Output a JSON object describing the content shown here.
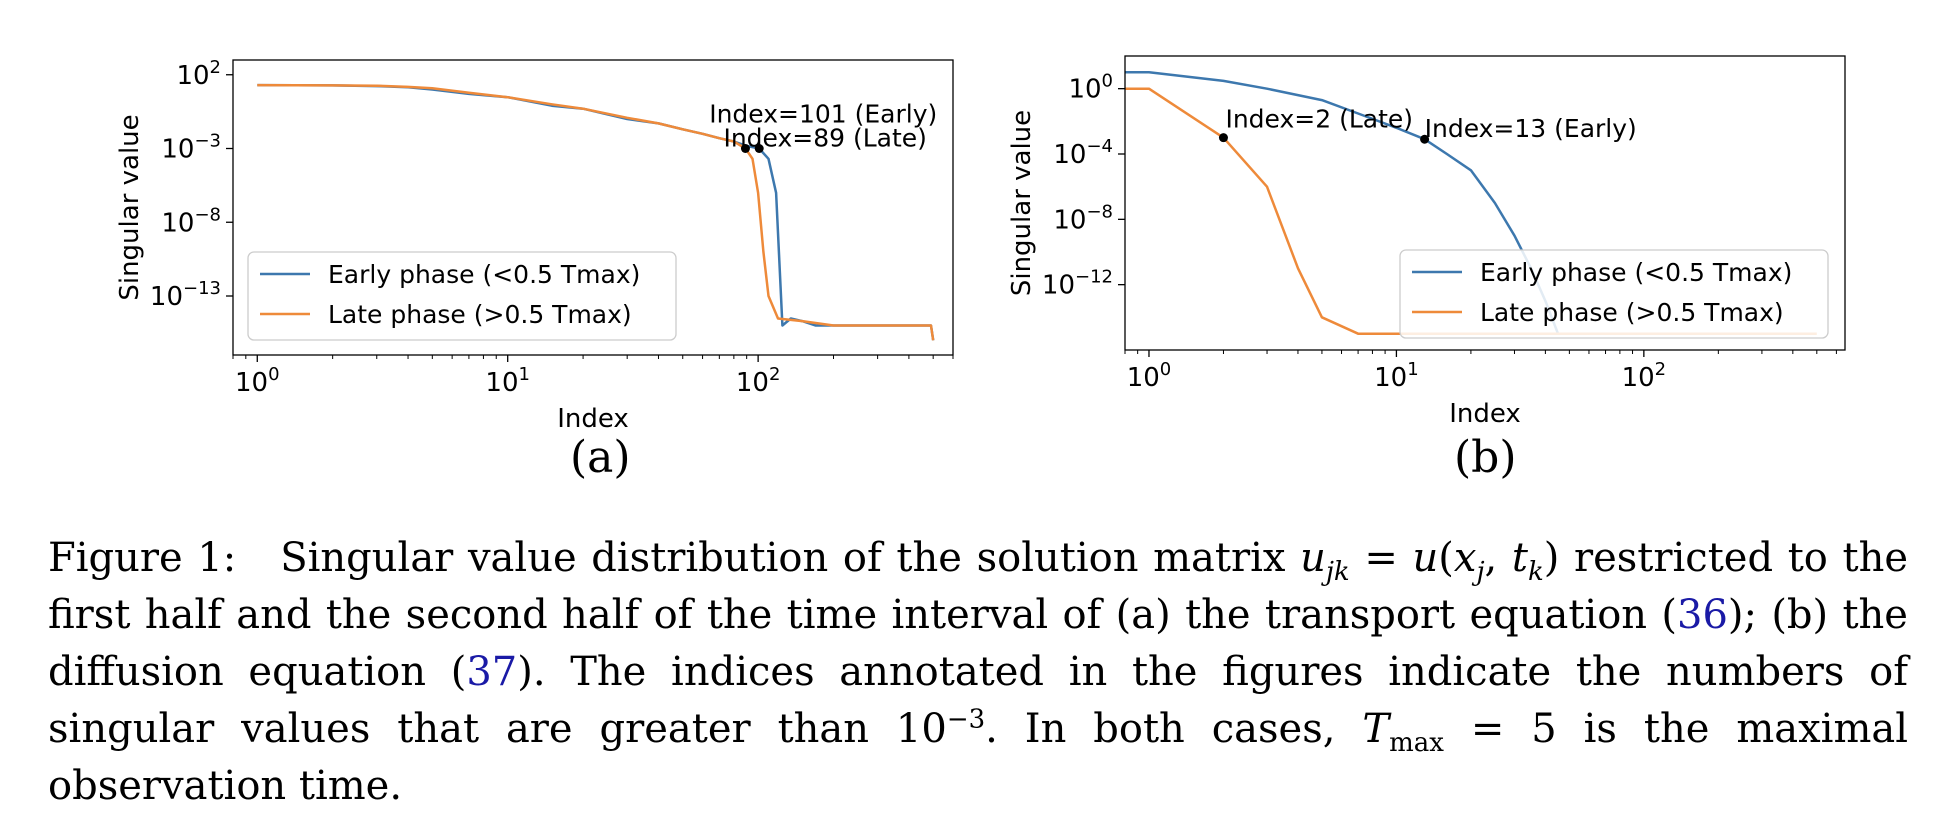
{
  "chart_data": [
    {
      "id": "a",
      "type": "line",
      "xscale": "log",
      "yscale": "log",
      "xlabel": "Index",
      "ylabel": "Singular value",
      "xlim": [
        0.8,
        600
      ],
      "ylim": [
        1e-17,
        1000.0
      ],
      "xticks": [
        {
          "value": 1,
          "base": "10",
          "exp": "0"
        },
        {
          "value": 10,
          "base": "10",
          "exp": "1"
        },
        {
          "value": 100,
          "base": "10",
          "exp": "2"
        }
      ],
      "yticks": [
        {
          "value": 100,
          "base": "10",
          "exp": "2"
        },
        {
          "value": 0.001,
          "base": "10",
          "exp": "−3"
        },
        {
          "value": 1e-08,
          "base": "10",
          "exp": "−8"
        },
        {
          "value": 1e-13,
          "base": "10",
          "exp": "−13"
        }
      ],
      "legend_position": "lower-left",
      "series": [
        {
          "name": "Early phase (<0.5 Tmax)",
          "color": "#3d78ae",
          "x": [
            1,
            2,
            3,
            4,
            5,
            7,
            10,
            15,
            20,
            30,
            40,
            50,
            60,
            70,
            80,
            90,
            101,
            110,
            118,
            125,
            135,
            150,
            170,
            200,
            300,
            400,
            490,
            500
          ],
          "y": [
            20,
            19,
            17,
            14,
            10,
            5,
            3,
            0.8,
            0.5,
            0.1,
            0.05,
            0.02,
            0.01,
            0.005,
            0.003,
            0.0015,
            0.001,
            0.0002,
            1e-06,
            1e-15,
            3e-15,
            2e-15,
            1e-15,
            1e-15,
            1e-15,
            1e-15,
            1e-15,
            1e-16
          ]
        },
        {
          "name": "Late phase (>0.5 Tmax)",
          "color": "#ee8a3a",
          "x": [
            1,
            2,
            3,
            4,
            5,
            7,
            10,
            15,
            20,
            30,
            40,
            50,
            60,
            70,
            80,
            89,
            95,
            100,
            105,
            110,
            120,
            150,
            200,
            300,
            400,
            490,
            500
          ],
          "y": [
            20,
            19,
            18,
            15,
            12,
            6,
            3,
            1,
            0.5,
            0.12,
            0.05,
            0.02,
            0.01,
            0.005,
            0.003,
            0.001,
            0.0002,
            1e-06,
            1e-10,
            1e-13,
            3e-15,
            2e-15,
            1e-15,
            1e-15,
            1e-15,
            1e-15,
            1e-16
          ]
        }
      ],
      "annotations": [
        {
          "text": "Index=101 (Early)",
          "x": 101,
          "y": 0.001
        },
        {
          "text": "Index=89 (Late)",
          "x": 89,
          "y": 0.001
        }
      ],
      "subfigure_label": "(a)"
    },
    {
      "id": "b",
      "type": "line",
      "xscale": "log",
      "yscale": "log",
      "xlabel": "Index",
      "ylabel": "Singular value",
      "xlim": [
        0.8,
        650
      ],
      "ylim": [
        1e-16,
        100.0
      ],
      "xticks": [
        {
          "value": 1,
          "base": "10",
          "exp": "0"
        },
        {
          "value": 10,
          "base": "10",
          "exp": "1"
        },
        {
          "value": 100,
          "base": "10",
          "exp": "2"
        }
      ],
      "yticks": [
        {
          "value": 1,
          "base": "10",
          "exp": "0"
        },
        {
          "value": 0.0001,
          "base": "10",
          "exp": "−4"
        },
        {
          "value": 1e-08,
          "base": "10",
          "exp": "−8"
        },
        {
          "value": 1e-12,
          "base": "10",
          "exp": "−12"
        }
      ],
      "legend_position": "lower-right",
      "series": [
        {
          "name": "Early phase (<0.5 Tmax)",
          "color": "#3d78ae",
          "x": [
            0.8,
            1,
            2,
            3,
            5,
            7,
            10,
            13,
            16,
            20,
            25,
            30,
            35,
            40,
            45
          ],
          "y": [
            10,
            10,
            3,
            1,
            0.2,
            0.03,
            0.004,
            0.0008,
            0.0001,
            1e-05,
            1e-07,
            1e-09,
            1e-11,
            1e-13,
            1e-15
          ]
        },
        {
          "name": "Late phase (>0.5 Tmax)",
          "color": "#ee8a3a",
          "x": [
            0.8,
            1,
            2,
            3,
            4,
            5,
            7,
            10,
            20,
            50,
            100,
            500
          ],
          "y": [
            1,
            1,
            0.001,
            1e-06,
            1e-11,
            1e-14,
            1e-15,
            1e-15,
            1e-15,
            1e-15,
            1e-15,
            1e-15
          ]
        }
      ],
      "annotations": [
        {
          "text": "Index=2 (Late)",
          "x": 2,
          "y": 0.001
        },
        {
          "text": "Index=13 (Early)",
          "x": 13,
          "y": 0.0008
        }
      ],
      "subfigure_label": "(b)"
    }
  ],
  "caption": {
    "figure_label": "Figure 1:",
    "line1_a": "Singular value distribution of the solution matrix",
    "line1_b": "restricted to the",
    "line2_a": "first half and the second half of the time interval of (a) the transport equation (",
    "ref36": "36",
    "line2_b": "); (b) the",
    "line3_a": "diffusion equation (",
    "ref37": "37",
    "line3_b": "). The indices annotated in the figures indicate the numbers of singular",
    "line4_a": "values that are greater than 10",
    "line4_exp": "−3",
    "line4_b": ". In both cases,",
    "line4_c": "= 5 is the maximal observation time."
  }
}
